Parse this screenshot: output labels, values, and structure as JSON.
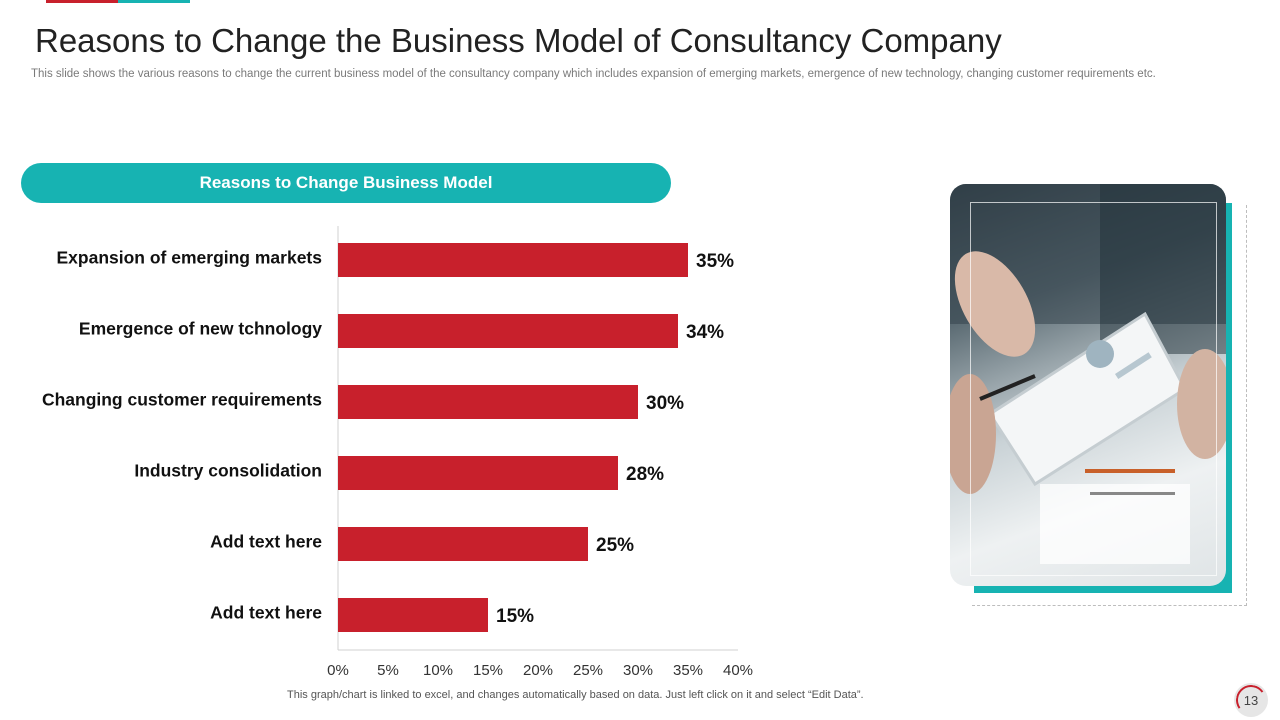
{
  "slide": {
    "title": "Reasons to Change the Business Model of Consultancy Company",
    "subtitle": "This slide shows the various  reasons to change the current business model of the consultancy company which includes expansion of emerging markets, emergence of new technology, changing customer requirements  etc.",
    "pill_label": "Reasons to Change Business Model",
    "footnote": "This graph/chart is linked to excel, and changes automatically based on data. Just left click on it and select “Edit Data”.",
    "page_number": "13"
  },
  "colors": {
    "bar": "#c8202c",
    "accent_teal": "#17b3b2",
    "accent_red": "#c8202c"
  },
  "chart_data": {
    "type": "bar",
    "orientation": "horizontal",
    "categories": [
      "Expansion of emerging markets",
      "Emergence of new tchnology",
      "Changing customer requirements",
      "Industry consolidation",
      "Add text here",
      "Add text here"
    ],
    "values": [
      35,
      34,
      30,
      28,
      25,
      15
    ],
    "value_labels": [
      "35%",
      "34%",
      "30%",
      "28%",
      "25%",
      "15%"
    ],
    "x_ticks": [
      "0%",
      "5%",
      "10%",
      "15%",
      "20%",
      "25%",
      "30%",
      "35%",
      "40%"
    ],
    "xlim": [
      0,
      40
    ],
    "grid": false
  }
}
